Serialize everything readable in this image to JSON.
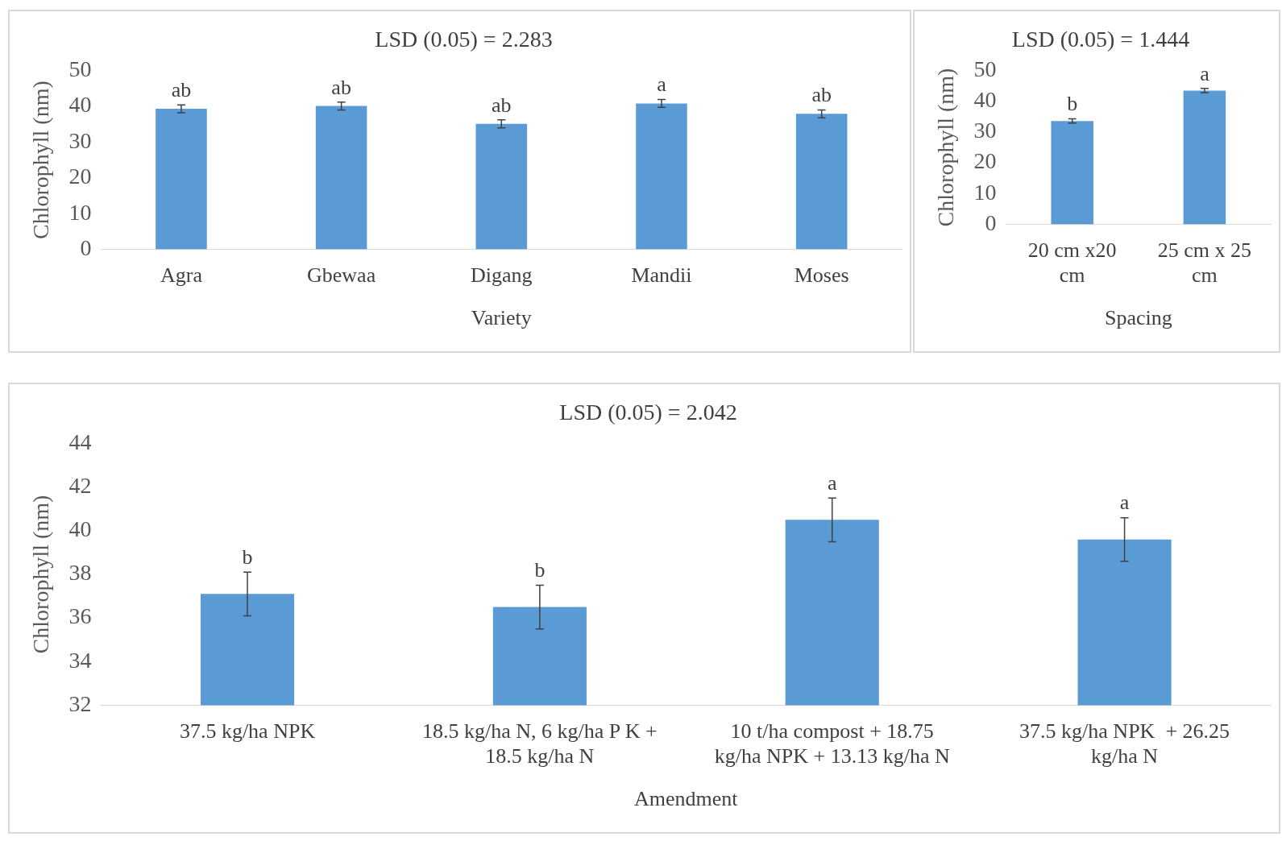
{
  "chart_data": [
    {
      "type": "bar",
      "title": "LSD (0.05) = 2.283",
      "xlabel": "Variety",
      "ylabel": "Chlorophyll (nm)",
      "categories": [
        "Agra",
        "Gbewaa",
        "Digang",
        "Mandii",
        "Moses"
      ],
      "series": [
        {
          "color": "#5b9bd5",
          "values": [
            39.3,
            40.1,
            35.1,
            40.8,
            37.9
          ],
          "errors": [
            1.1,
            1.1,
            1.1,
            1.1,
            1.1
          ]
        }
      ],
      "ylim": [
        0,
        50
      ],
      "yticks": [
        0,
        10,
        20,
        30,
        40,
        50
      ],
      "grid": false,
      "legend": false,
      "annotations": [
        "ab",
        "ab",
        "ab",
        "a",
        "ab"
      ]
    },
    {
      "type": "bar",
      "title": "LSD (0.05) = 1.444",
      "xlabel": "Spacing",
      "ylabel": "Chlorophyll (nm)",
      "categories": [
        "20 cm x20 cm",
        "25 cm x 25 cm"
      ],
      "series": [
        {
          "color": "#5b9bd5",
          "values": [
            33.6,
            43.5
          ],
          "errors": [
            0.7,
            0.7
          ]
        }
      ],
      "ylim": [
        0,
        50
      ],
      "yticks": [
        0,
        10,
        20,
        30,
        40,
        50
      ],
      "grid": false,
      "legend": false,
      "annotations": [
        "b",
        "a"
      ]
    },
    {
      "type": "bar",
      "title": "LSD (0.05) = 2.042",
      "xlabel": "Amendment",
      "ylabel": "Chlorophyll (nm)",
      "categories": [
        "37.5 kg/ha NPK",
        "18.5 kg/ha N, 6 kg/ha P K + 18.5 kg/ha N",
        "10 t/ha compost + 18.75 kg/ha NPK + 13.13 kg/ha N",
        "37.5 kg/ha NPK  + 26.25 kg/ha N"
      ],
      "series": [
        {
          "color": "#5b9bd5",
          "values": [
            37.1,
            36.5,
            40.5,
            39.6
          ],
          "errors": [
            1.0,
            1.0,
            1.0,
            1.0
          ]
        }
      ],
      "ylim": [
        32,
        44
      ],
      "yticks": [
        32,
        34,
        36,
        38,
        40,
        42,
        44
      ],
      "grid": false,
      "legend": false,
      "annotations": [
        "b",
        "b",
        "a",
        "a"
      ]
    }
  ]
}
